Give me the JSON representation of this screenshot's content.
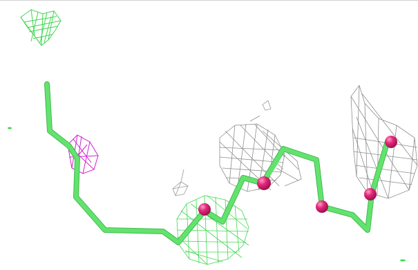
{
  "scene": {
    "description_kind": "molecular-render",
    "background_color": "#ffffff",
    "colors": {
      "backbone": "#5fe06a",
      "backbone_shadow": "#4ac457",
      "atom": "#e3287a",
      "atom_highlight": "#ff7fb2",
      "mesh_gray": "#8a8a8a",
      "mesh_green": "#39d44a",
      "mesh_magenta": "#d21fd2"
    },
    "legend": "",
    "labels": []
  }
}
